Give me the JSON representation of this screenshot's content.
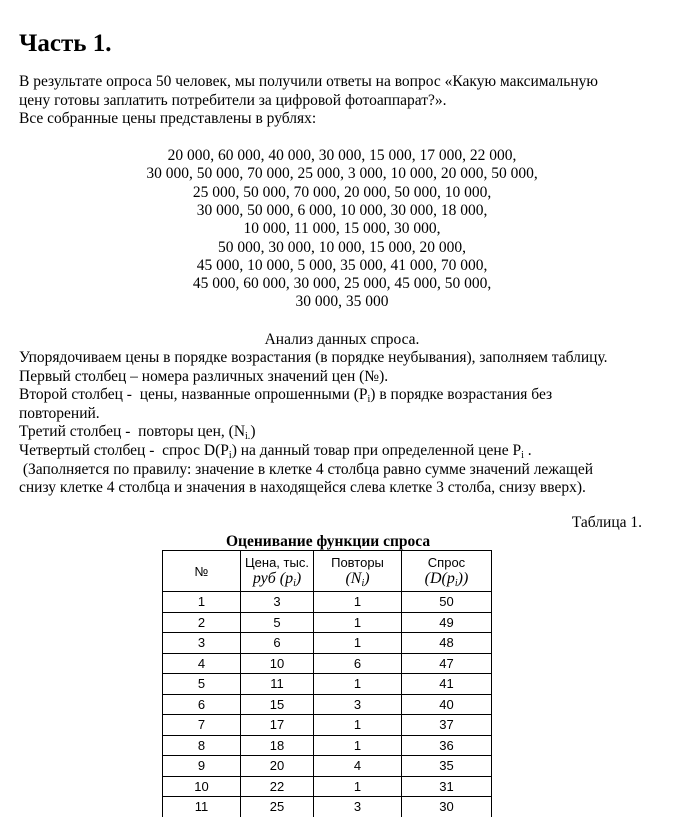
{
  "heading": "Часть 1.",
  "intro": [
    [
      "В результате опроса 50 человек, мы получили ответы на вопрос «Какую максимальную"
    ],
    [
      "цену готовы заплатить потребители за цифровой фотоаппарат?»."
    ],
    [
      "Все собранные цены представлены в рублях:"
    ]
  ],
  "prices": [
    "20 000, 60 000, 40 000, 30 000, 15 000, 17 000, 22 000,",
    "30 000, 50 000, 70 000, 25 000, 3 000, 10 000, 20 000, 50 000,",
    "25 000, 50 000, 70 000, 20 000, 50 000, 10 000,",
    "30 000, 50 000, 6 000, 10 000, 30 000, 18 000,",
    "10 000, 11 000, 15 000, 30 000,",
    "50 000, 30 000, 10 000, 15 000, 20 000,",
    "45 000, 10 000, 5 000, 35 000, 41 000, 70 000,",
    "45 000, 60 000, 30 000, 25 000, 45 000, 50 000,",
    "30 000, 35 000"
  ],
  "analysis_title": "Анализ данных спроса.",
  "analysis": [
    [
      "Упорядочиваем цены в порядке возрастания (в порядке неубывания), заполняем таблицу."
    ],
    [
      "Первый столбец – номера различных значений цен (№)."
    ],
    [
      "Второй столбец -  цены, названные опрошенными (P",
      "i",
      ") в порядке возрастания без"
    ],
    [
      "повторений."
    ],
    [
      "Третий столбец -  повторы цен, (N",
      "i.",
      ")"
    ],
    [
      "Четвертый столбец -  спрос D(P",
      "i",
      ") на данный товар при определенной цене P",
      "i",
      " ."
    ],
    [
      " (Заполняется по правилу: значение в клетке 4 столбца равно сумме значений лежащей"
    ],
    [
      "снизу клетке 4 столбца и значения в находящейся слева клетке 3 столба, снизу вверх)."
    ]
  ],
  "table": {
    "label": "Таблица 1.",
    "title": "Оценивание функции спроса",
    "header": [
      [
        [
          "№"
        ]
      ],
      [
        [
          "Цена, тыс."
        ],
        [
          "руб (p",
          "i",
          ")"
        ]
      ],
      [
        [
          "Повторы"
        ],
        [
          "(N",
          "i",
          ")"
        ]
      ],
      [
        [
          "Спрос"
        ],
        [
          "(D(p",
          "i",
          "))"
        ]
      ]
    ],
    "rows": [
      [
        1,
        3,
        1,
        50
      ],
      [
        2,
        5,
        1,
        49
      ],
      [
        3,
        6,
        1,
        48
      ],
      [
        4,
        10,
        6,
        47
      ],
      [
        5,
        11,
        1,
        41
      ],
      [
        6,
        15,
        3,
        40
      ],
      [
        7,
        17,
        1,
        37
      ],
      [
        8,
        18,
        1,
        36
      ],
      [
        9,
        20,
        4,
        35
      ],
      [
        10,
        22,
        1,
        31
      ],
      [
        11,
        25,
        3,
        30
      ]
    ]
  }
}
